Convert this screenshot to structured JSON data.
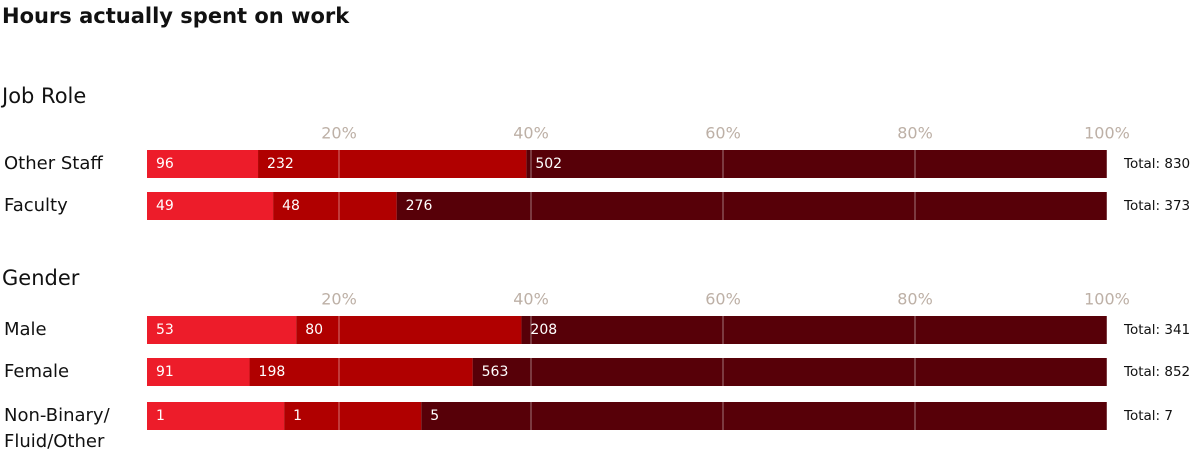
{
  "title": "Hours actually spent on work",
  "chart_data": [
    {
      "type": "bar",
      "orientation": "horizontal",
      "stacked": "percent",
      "title": "Job Role",
      "categories": [
        "Other Staff",
        "Faculty"
      ],
      "series": [
        {
          "color": "#ed1c2a",
          "values": [
            96,
            49
          ]
        },
        {
          "color": "#b00000",
          "values": [
            232,
            48
          ]
        },
        {
          "color": "#570008",
          "values": [
            502,
            276
          ]
        }
      ],
      "total_labels": [
        "Total: 830",
        "Total: 373"
      ],
      "xlim": [
        0,
        100
      ],
      "xticks": [
        {
          "value": 20,
          "label": "20%"
        },
        {
          "value": 40,
          "label": "40%"
        },
        {
          "value": 60,
          "label": "60%"
        },
        {
          "value": 80,
          "label": "80%"
        },
        {
          "value": 100,
          "label": "100%"
        }
      ],
      "grid": true
    },
    {
      "type": "bar",
      "orientation": "horizontal",
      "stacked": "percent",
      "title": "Gender",
      "categories": [
        "Male",
        "Female",
        "Non-Binary/ Fluid/Other"
      ],
      "series": [
        {
          "color": "#ed1c2a",
          "values": [
            53,
            91,
            1
          ]
        },
        {
          "color": "#b00000",
          "values": [
            80,
            198,
            1
          ]
        },
        {
          "color": "#570008",
          "values": [
            208,
            563,
            5
          ]
        }
      ],
      "total_labels": [
        "Total: 341",
        "Total: 852",
        "Total: 7"
      ],
      "xlim": [
        0,
        100
      ],
      "xticks": [
        {
          "value": 20,
          "label": "20%"
        },
        {
          "value": 40,
          "label": "40%"
        },
        {
          "value": 60,
          "label": "60%"
        },
        {
          "value": 80,
          "label": "80%"
        },
        {
          "value": 100,
          "label": "100%"
        }
      ],
      "grid": true
    }
  ]
}
